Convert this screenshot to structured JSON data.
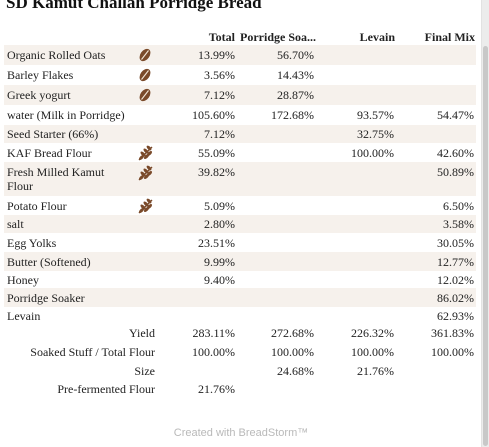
{
  "recipe_title": "SD Kamut Challah Porridge Bread",
  "columns": [
    "Total",
    "Porridge Soa...",
    "Levain",
    "Final Mix"
  ],
  "ingredients": [
    {
      "name": "Organic Rolled Oats",
      "icon": "grain-seed-icon",
      "total": "13.99%",
      "porridge": "56.70%",
      "levain": "",
      "final": ""
    },
    {
      "name": "Barley Flakes",
      "icon": "grain-seed-icon",
      "total": "3.56%",
      "porridge": "14.43%",
      "levain": "",
      "final": ""
    },
    {
      "name": "Greek yogurt",
      "icon": "grain-seed-icon",
      "total": "7.12%",
      "porridge": "28.87%",
      "levain": "",
      "final": ""
    },
    {
      "name": "water (Milk in Porridge)",
      "icon": "",
      "total": "105.60%",
      "porridge": "172.68%",
      "levain": "93.57%",
      "final": "54.47%"
    },
    {
      "name": "Seed Starter (66%)",
      "icon": "",
      "total": "7.12%",
      "porridge": "",
      "levain": "32.75%",
      "final": ""
    },
    {
      "name": "KAF Bread Flour",
      "icon": "wheat-icon",
      "total": "55.09%",
      "porridge": "",
      "levain": "100.00%",
      "final": "42.60%"
    },
    {
      "name": "Fresh Milled Kamut Flour",
      "icon": "wheat-icon",
      "total": "39.82%",
      "porridge": "",
      "levain": "",
      "final": "50.89%"
    },
    {
      "name": "Potato Flour",
      "icon": "wheat-icon",
      "total": "5.09%",
      "porridge": "",
      "levain": "",
      "final": "6.50%"
    },
    {
      "name": "salt",
      "icon": "",
      "total": "2.80%",
      "porridge": "",
      "levain": "",
      "final": "3.58%"
    },
    {
      "name": "Egg Yolks",
      "icon": "",
      "total": "23.51%",
      "porridge": "",
      "levain": "",
      "final": "30.05%"
    },
    {
      "name": "Butter (Softened)",
      "icon": "",
      "total": "9.99%",
      "porridge": "",
      "levain": "",
      "final": "12.77%"
    },
    {
      "name": "Honey",
      "icon": "",
      "total": "9.40%",
      "porridge": "",
      "levain": "",
      "final": "12.02%"
    },
    {
      "name": "Porridge Soaker",
      "icon": "",
      "total": "",
      "porridge": "",
      "levain": "",
      "final": "86.02%"
    },
    {
      "name": "Levain",
      "icon": "",
      "total": "",
      "porridge": "",
      "levain": "",
      "final": "62.93%"
    }
  ],
  "summary": [
    {
      "label": "Yield",
      "total": "283.11%",
      "porridge": "272.68%",
      "levain": "226.32%",
      "final": "361.83%"
    },
    {
      "label": "Soaked Stuff / Total Flour",
      "total": "100.00%",
      "porridge": "100.00%",
      "levain": "100.00%",
      "final": "100.00%"
    },
    {
      "label": "Size",
      "total": "",
      "porridge": "24.68%",
      "levain": "21.76%",
      "final": ""
    },
    {
      "label": "Pre-fermented Flour",
      "total": "21.76%",
      "porridge": "",
      "levain": "",
      "final": ""
    }
  ],
  "footer": "Created with BreadStorm™",
  "colors": {
    "row_shade": "#f6f1ec",
    "icon_brown": "#7a4a2a",
    "footer_gray": "#b9b9b9"
  }
}
